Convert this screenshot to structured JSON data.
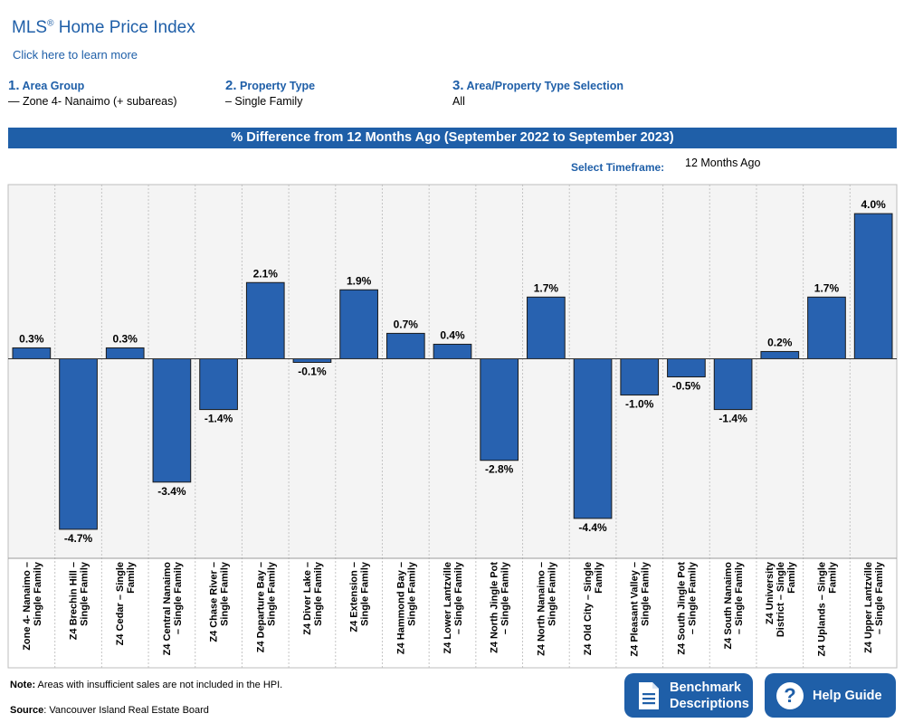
{
  "header": {
    "title": "MLS",
    "title_reg": "®",
    "title_rest": " Home Price Index",
    "learn_more": "Click here to learn more"
  },
  "selections": [
    {
      "num": "1.",
      "label": "Area Group",
      "value": "— Zone 4- Nanaimo (+ subareas)"
    },
    {
      "num": "2.",
      "label": "Property Type",
      "value": "– Single Family"
    },
    {
      "num": "3.",
      "label": "Area/Property Type Selection",
      "value": "All"
    }
  ],
  "banner": "% Difference from 12 Months Ago (September 2022 to September 2023)",
  "timeframe": {
    "label": "Select Timeframe:",
    "value": "12 Months Ago"
  },
  "footer": {
    "note_label": "Note:",
    "note_text": " Areas with insufficient sales are not included in the HPI.",
    "source_label": "Source",
    "source_text": ": Vancouver Island Real Estate Board"
  },
  "buttons": {
    "benchmark_line1": "Benchmark",
    "benchmark_line2": "Descriptions",
    "help": "Help Guide"
  },
  "colors": {
    "accent": "#1f5fa8",
    "bar": "#2862b0",
    "plot_bg": "#f4f4f4"
  },
  "chart_data": {
    "type": "bar",
    "categories": [
      [
        "Zone 4- Nanaimo –",
        "Single Family"
      ],
      [
        "Z4 Brechin Hill –",
        "Single Family"
      ],
      [
        "Z4 Cedar – Single",
        "Family"
      ],
      [
        "Z4 Central Nanaimo",
        "– Single Family"
      ],
      [
        "Z4 Chase River –",
        "Single Family"
      ],
      [
        "Z4 Departure Bay –",
        "Single Family"
      ],
      [
        "Z4 Diver Lake –",
        "Single Family"
      ],
      [
        "Z4 Extension –",
        "Single Family"
      ],
      [
        "Z4 Hammond Bay –",
        "Single Family"
      ],
      [
        "Z4 Lower Lantzville",
        "– Single Family"
      ],
      [
        "Z4 North Jingle Pot",
        "– Single Family"
      ],
      [
        "Z4 North Nanaimo –",
        "Single Family"
      ],
      [
        "Z4 Old City – Single",
        "Family"
      ],
      [
        "Z4 Pleasant Valley –",
        "Single Family"
      ],
      [
        "Z4 South Jingle Pot",
        "– Single Family"
      ],
      [
        "Z4 South Nanaimo",
        "– Single Family"
      ],
      [
        "Z4 University",
        "District – Single",
        "Family"
      ],
      [
        "Z4 Uplands – Single",
        "Family"
      ],
      [
        "Z4 Upper Lantzville",
        "– Single Family"
      ]
    ],
    "values": [
      0.3,
      -4.7,
      0.3,
      -3.4,
      -1.4,
      2.1,
      -0.1,
      1.9,
      0.7,
      0.4,
      -2.8,
      1.7,
      -4.4,
      -1.0,
      -0.5,
      -1.4,
      0.2,
      1.7,
      4.0
    ],
    "labels": [
      "0.3%",
      "-4.7%",
      "0.3%",
      "-3.4%",
      "-1.4%",
      "2.1%",
      "-0.1%",
      "1.9%",
      "0.7%",
      "0.4%",
      "-2.8%",
      "1.7%",
      "-4.4%",
      "-1.0%",
      "-0.5%",
      "-1.4%",
      "0.2%",
      "1.7%",
      "4.0%"
    ],
    "ylim": [
      -5.5,
      4.8
    ],
    "grid": "vertical-dotted"
  }
}
